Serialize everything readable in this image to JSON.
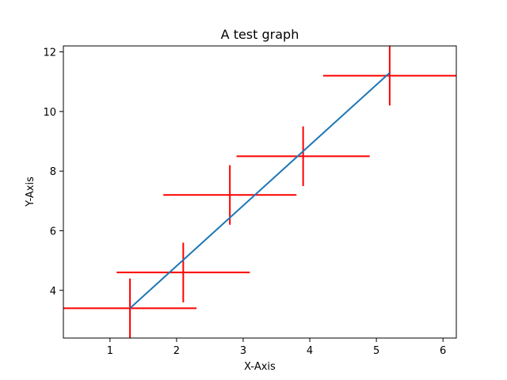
{
  "chart_data": {
    "type": "scatter",
    "title": "A test graph",
    "xlabel": "X-Axis",
    "ylabel": "Y-Axis",
    "xlim": [
      0.3,
      6.2
    ],
    "ylim": [
      2.4,
      12.2
    ],
    "xticks": [
      1,
      2,
      3,
      4,
      5,
      6
    ],
    "yticks": [
      4,
      6,
      8,
      10,
      12
    ],
    "grid": false,
    "line": {
      "x": [
        1.3,
        5.2
      ],
      "y": [
        3.4,
        11.3
      ],
      "color": "#1f77b4"
    },
    "errorbars": {
      "color": "#ff0000",
      "points": [
        {
          "x": 1.3,
          "y": 3.4,
          "xerr": 1.0,
          "yerr": 1.0
        },
        {
          "x": 2.1,
          "y": 4.6,
          "xerr": 1.0,
          "yerr": 1.0
        },
        {
          "x": 2.8,
          "y": 7.2,
          "xerr": 1.0,
          "yerr": 1.0
        },
        {
          "x": 3.9,
          "y": 8.5,
          "xerr": 1.0,
          "yerr": 1.0
        },
        {
          "x": 5.2,
          "y": 11.2,
          "xerr": 1.0,
          "yerr": 1.0
        }
      ]
    }
  }
}
